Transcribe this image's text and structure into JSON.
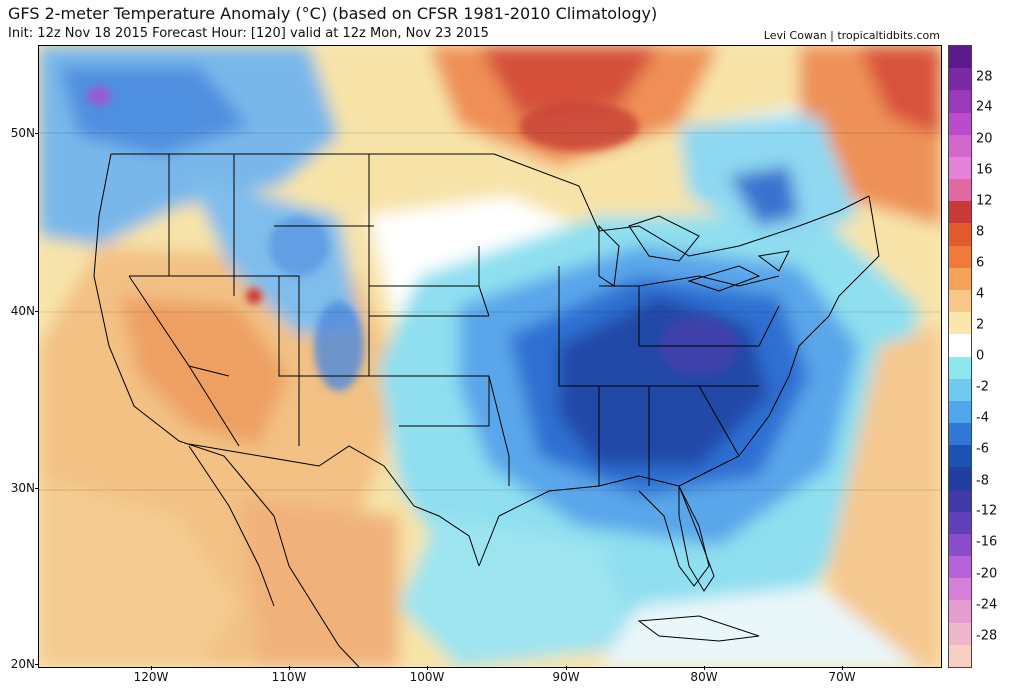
{
  "header": {
    "title": "GFS 2-meter Temperature Anomaly (°C) (based on CFSR 1981-2010 Climatology)",
    "subtitle": "Init: 12z Nov 18 2015   Forecast Hour: [120]   valid at 12z Mon, Nov 23 2015",
    "credit": "Levi Cowan | tropicaltidbits.com"
  },
  "map": {
    "lat_labels": [
      "50N",
      "40N",
      "30N",
      "20N"
    ],
    "lon_labels": [
      "120W",
      "110W",
      "100W",
      "90W",
      "80W",
      "70W"
    ]
  },
  "colorbar": {
    "labels": [
      "28",
      "24",
      "20",
      "16",
      "12",
      "8",
      "6",
      "4",
      "2",
      "0",
      "-2",
      "-4",
      "-6",
      "-8",
      "-12",
      "-16",
      "-20",
      "-24",
      "-28"
    ],
    "colors": [
      "#5b1a8c",
      "#7a2aa5",
      "#9a3ab9",
      "#b84ccb",
      "#d466cf",
      "#e683d8",
      "#e06aa0",
      "#c83a3a",
      "#e25a30",
      "#f07a3c",
      "#f5a25a",
      "#f9c787",
      "#fbe6ac",
      "#ffffff",
      "#8ee6ee",
      "#6fcaf0",
      "#4fa6ea",
      "#2f78d6",
      "#1e52b2",
      "#213f9e",
      "#3e3aa8",
      "#6040b8",
      "#8b4ecb",
      "#b463d9",
      "#d67fd8",
      "#e69ecf",
      "#efb7c8",
      "#f8cfc2"
    ]
  }
}
